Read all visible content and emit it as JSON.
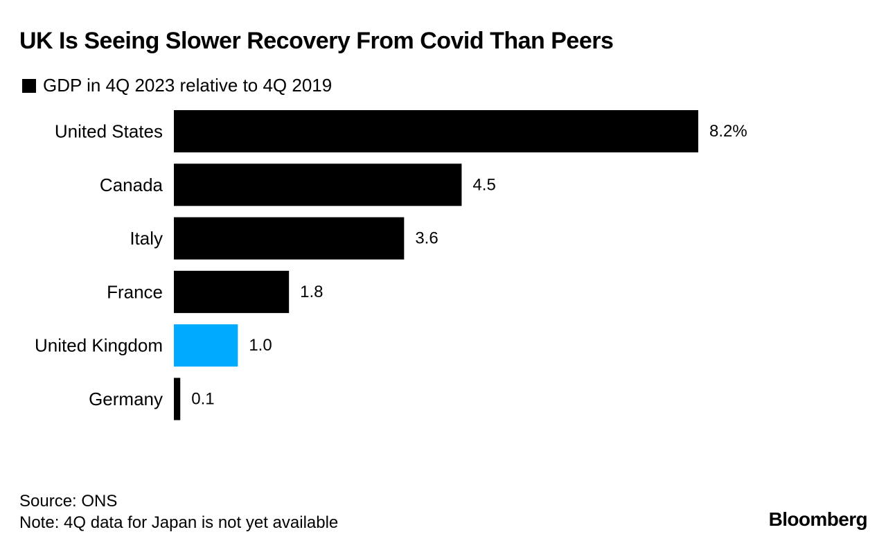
{
  "chart_data": {
    "type": "bar",
    "orientation": "horizontal",
    "title": "UK Is Seeing Slower Recovery From Covid Than Peers",
    "legend": [
      {
        "label": "GDP in 4Q 2023 relative to 4Q 2019",
        "color": "#000000"
      }
    ],
    "categories": [
      "United States",
      "Canada",
      "Italy",
      "France",
      "United Kingdom",
      "Germany"
    ],
    "values": [
      8.2,
      4.5,
      3.6,
      1.8,
      1.0,
      0.1
    ],
    "value_labels": [
      "8.2%",
      "4.5",
      "3.6",
      "1.8",
      "1.0",
      "0.1"
    ],
    "bar_colors": [
      "#000000",
      "#000000",
      "#000000",
      "#000000",
      "#00aaff",
      "#000000"
    ],
    "xlim": [
      0,
      8.2
    ],
    "unit": "%",
    "grid": false,
    "xlabel": "",
    "ylabel": ""
  },
  "footer": {
    "source": "Source: ONS",
    "note": "Note: 4Q data for Japan is not yet available"
  },
  "brand": "Bloomberg"
}
